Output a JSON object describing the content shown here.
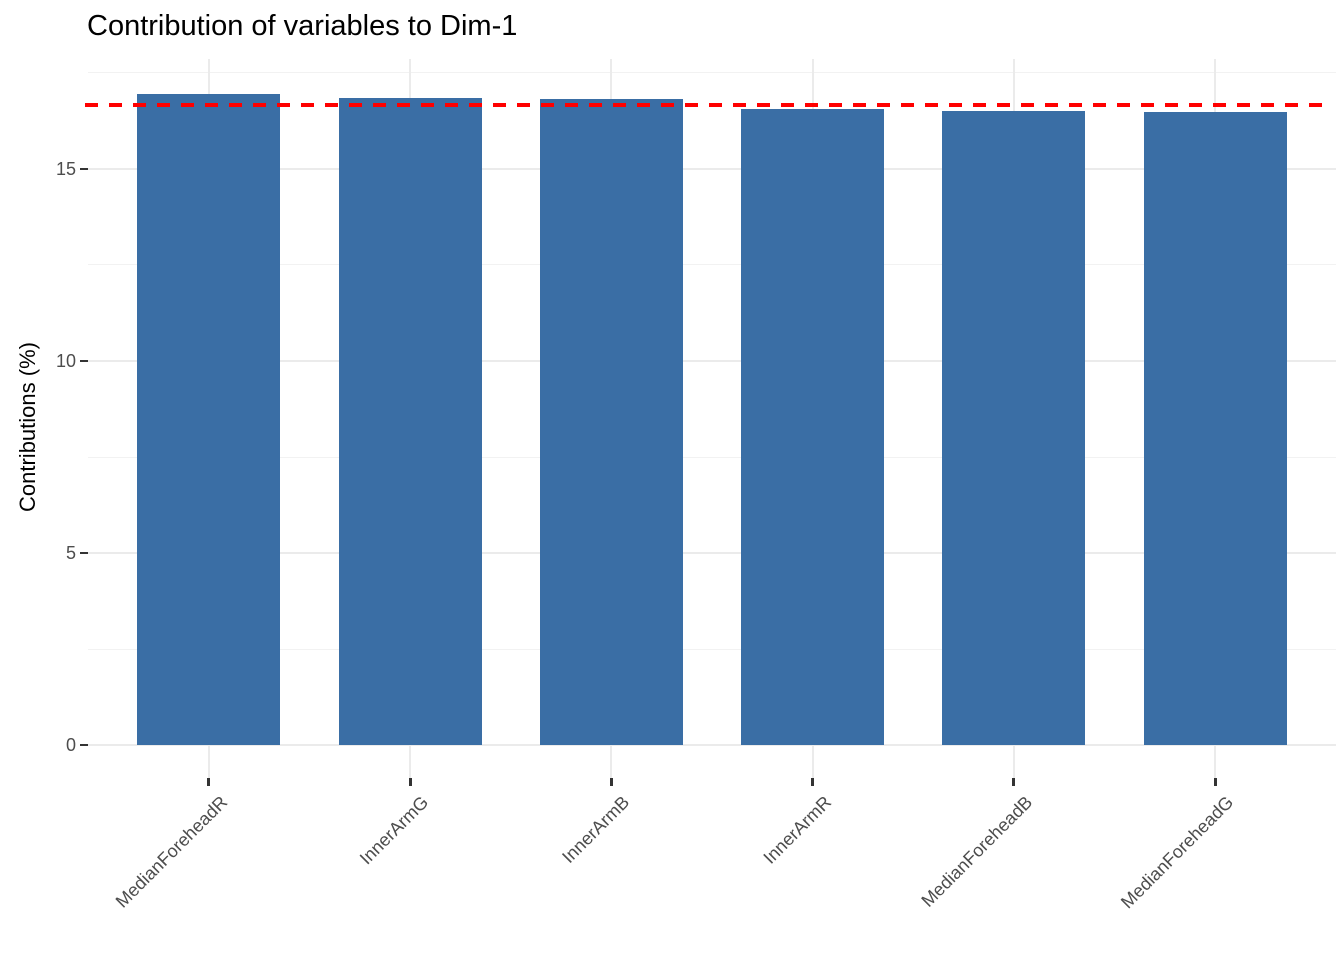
{
  "chart_data": {
    "type": "bar",
    "title": "Contribution of variables to Dim-1",
    "xlabel": "",
    "ylabel": "Contributions (%)",
    "categories": [
      "MedianForeheadR",
      "InnerArmG",
      "InnerArmB",
      "InnerArmR",
      "MedianForeheadB",
      "MedianForeheadG"
    ],
    "values": [
      16.95,
      16.84,
      16.82,
      16.55,
      16.51,
      16.47
    ],
    "yticks": [
      0,
      5,
      10,
      15
    ],
    "yticks_minor": [
      2.5,
      7.5,
      12.5,
      17.5
    ],
    "ylim": [
      -0.85,
      17.86
    ],
    "reference_line": {
      "value": 16.67,
      "color": "#FF0000",
      "style": "dashed"
    },
    "bar_color": "#3A6EA5",
    "grid": true,
    "grid_major_color": "#EBEBEB",
    "grid_minor_color": "#F2F2F2",
    "axis_text_color": "#4D4D4D",
    "title_color": "#000000",
    "legend": "none"
  }
}
